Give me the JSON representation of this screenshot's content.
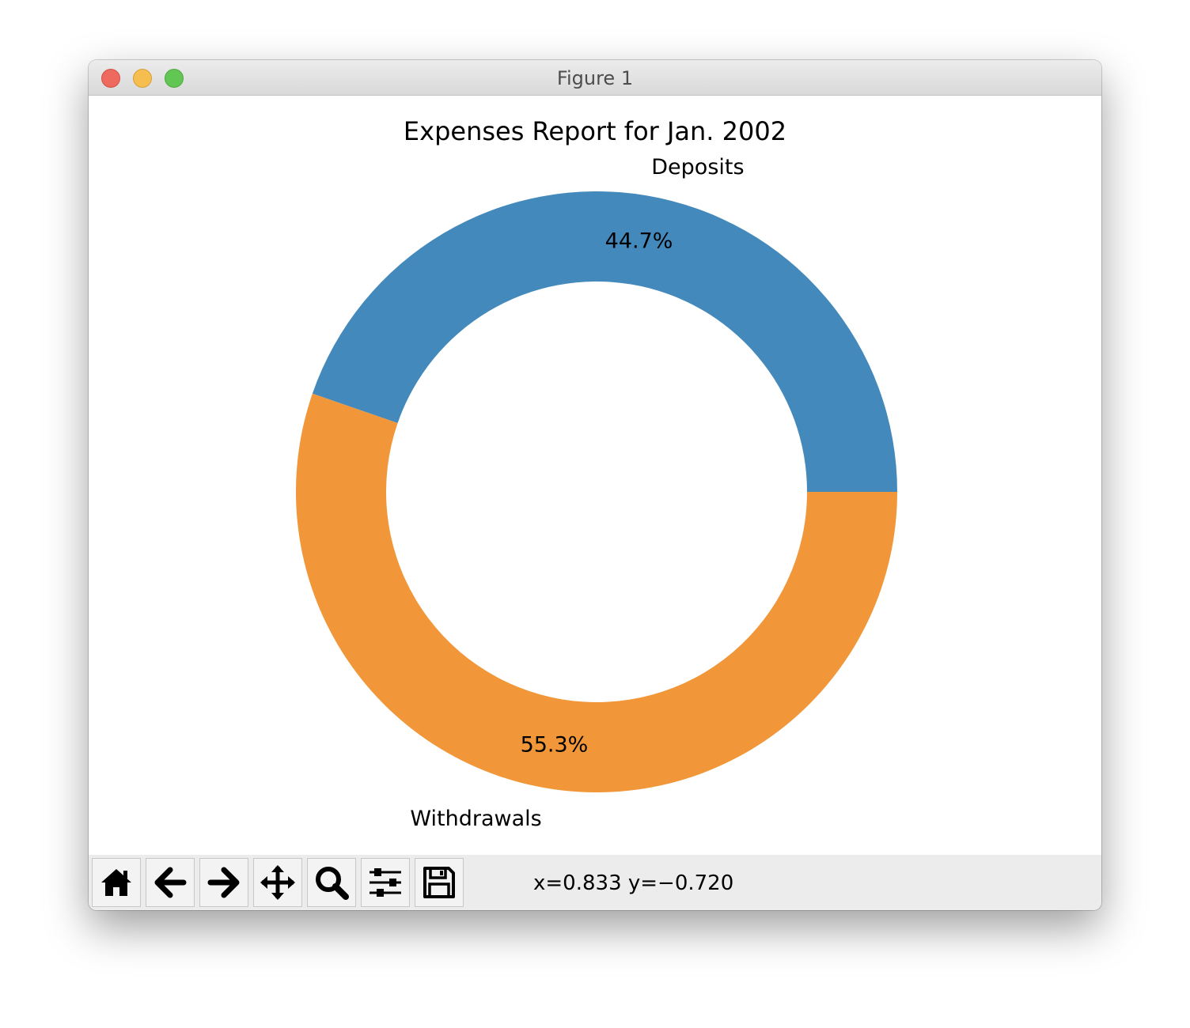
{
  "window": {
    "title": "Figure 1"
  },
  "toolbar": {
    "buttons": [
      {
        "name": "home",
        "icon": "home-icon"
      },
      {
        "name": "back",
        "icon": "arrow-left-icon"
      },
      {
        "name": "forward",
        "icon": "arrow-right-icon"
      },
      {
        "name": "pan",
        "icon": "move-icon"
      },
      {
        "name": "zoom",
        "icon": "magnifier-icon"
      },
      {
        "name": "configure-subplots",
        "icon": "sliders-icon"
      },
      {
        "name": "save",
        "icon": "floppy-disk-icon"
      }
    ],
    "coordinates": "x=0.833 y=−0.720"
  },
  "chart_data": {
    "type": "pie",
    "style": "donut",
    "title": "Expenses Report for Jan. 2002",
    "categories": [
      "Deposits",
      "Withdrawals"
    ],
    "values": [
      44.7,
      55.3
    ],
    "value_labels": [
      "44.7%",
      "55.3%"
    ],
    "colors": [
      "#4489bc",
      "#f19739"
    ],
    "start_angle_deg": 0,
    "direction": "counterclockwise"
  }
}
